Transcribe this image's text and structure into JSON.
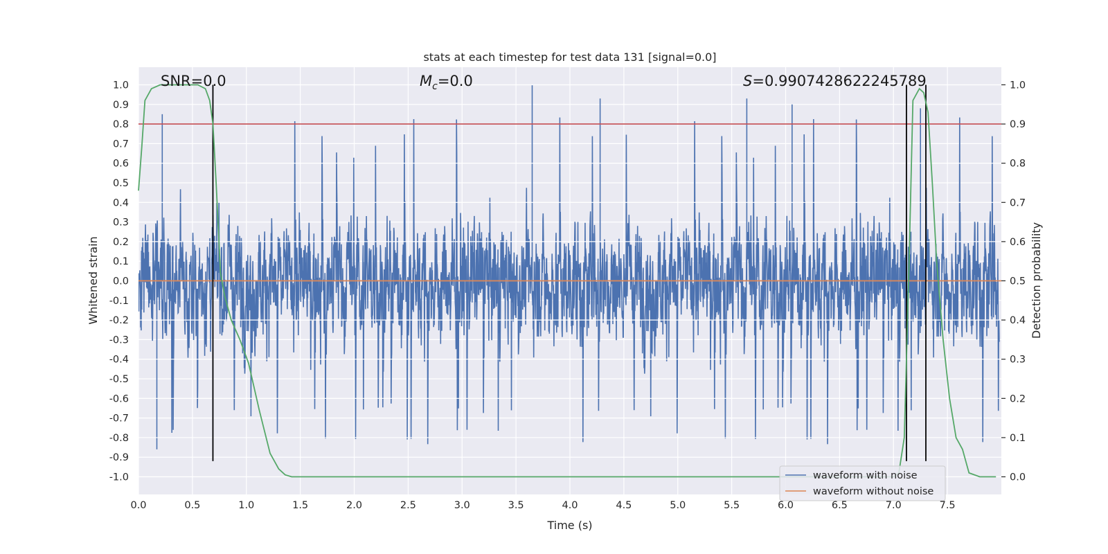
{
  "chart_data": {
    "type": "line",
    "title": "stats at each timestep for test data 131 [signal=0.0]",
    "xlabel": "Time (s)",
    "ylabel": "Whitened strain",
    "ylabel_right": "Detection probability",
    "xlim": [
      0.0,
      8.0
    ],
    "ylim": [
      -1.09,
      1.09
    ],
    "ylim_right": [
      -0.045,
      1.045
    ],
    "x_ticks": [
      0.0,
      0.5,
      1.0,
      1.5,
      2.0,
      2.5,
      3.0,
      3.5,
      4.0,
      4.5,
      5.0,
      5.5,
      6.0,
      6.5,
      7.0,
      7.5
    ],
    "x_tick_labels": [
      "0.0",
      "0.5",
      "1.0",
      "1.5",
      "2.0",
      "2.5",
      "3.0",
      "3.5",
      "4.0",
      "4.5",
      "5.0",
      "5.5",
      "6.0",
      "6.5",
      "7.0",
      "7.5"
    ],
    "y_ticks": [
      1.0,
      0.9,
      0.8,
      0.7,
      0.6,
      0.5,
      0.4,
      0.3,
      0.2,
      0.1,
      0.0,
      -0.1,
      -0.2,
      -0.3,
      -0.4,
      -0.5,
      -0.6,
      -0.7,
      -0.8,
      -0.9,
      -1.0
    ],
    "y_tick_labels": [
      "1.0",
      "0.9",
      "0.8",
      "0.7",
      "0.6",
      "0.5",
      "0.4",
      "0.3",
      "0.2",
      "0.1",
      "0.0",
      "-0.1",
      "-0.2",
      "-0.3",
      "-0.4",
      "-0.5",
      "-0.6",
      "-0.7",
      "-0.8",
      "-0.9",
      "-1.0"
    ],
    "y_ticks_right": [
      1.0,
      0.9,
      0.8,
      0.7,
      0.6,
      0.5,
      0.4,
      0.3,
      0.2,
      0.1,
      0.0
    ],
    "y_tick_labels_right": [
      "1.0",
      "0.9",
      "0.8",
      "0.7",
      "0.6",
      "0.5",
      "0.4",
      "0.3",
      "0.2",
      "0.1",
      "0.0"
    ],
    "grid": true,
    "legend_position": "bottom-right",
    "annotations": {
      "snr": "SNR=0.0",
      "mc_symbol": "M",
      "mc_sub": "c",
      "mc_value": "=0.0",
      "s_symbol": "S",
      "s_value": "=0.9907428622245789"
    },
    "series": [
      {
        "name": "waveform with noise",
        "color": "#4c72b0",
        "axis": "left",
        "kind": "noise",
        "typical_amplitude": 0.35,
        "peak_max": 1.0,
        "peak_min": -0.86
      },
      {
        "name": "waveform without noise",
        "color": "#dd8452",
        "axis": "left",
        "x": [
          0.0,
          8.0
        ],
        "y": [
          0.0,
          0.0
        ]
      },
      {
        "name": "detection probability",
        "color": "#55a868",
        "axis": "right",
        "x": [
          0.0,
          0.03,
          0.06,
          0.12,
          0.2,
          0.3,
          0.4,
          0.5,
          0.55,
          0.62,
          0.66,
          0.69,
          0.72,
          0.76,
          0.8,
          0.86,
          0.94,
          1.02,
          1.12,
          1.22,
          1.3,
          1.36,
          1.42,
          1.5,
          2.0,
          2.5,
          3.0,
          3.5,
          4.0,
          4.5,
          5.0,
          5.5,
          6.0,
          6.5,
          7.0,
          7.05,
          7.1,
          7.14,
          7.18,
          7.24,
          7.28,
          7.32,
          7.36,
          7.4,
          7.46,
          7.52,
          7.58,
          7.64,
          7.7,
          7.8,
          7.95
        ],
        "y": [
          0.73,
          0.84,
          0.96,
          0.99,
          1.0,
          1.0,
          1.0,
          1.0,
          1.0,
          0.99,
          0.96,
          0.9,
          0.75,
          0.52,
          0.46,
          0.4,
          0.35,
          0.29,
          0.17,
          0.06,
          0.02,
          0.005,
          0.0,
          0.0,
          0.0,
          0.0,
          0.0,
          0.0,
          0.0,
          0.0,
          0.0,
          0.0,
          0.0,
          0.0,
          0.0,
          0.01,
          0.1,
          0.5,
          0.96,
          0.99,
          0.98,
          0.93,
          0.75,
          0.55,
          0.35,
          0.2,
          0.1,
          0.07,
          0.01,
          0.0,
          0.0
        ]
      }
    ],
    "threshold_line": {
      "axis": "right",
      "value": 0.9,
      "color": "#c44e52"
    },
    "marker_lines": {
      "x": [
        0.69,
        7.12,
        7.3
      ],
      "y_range": [
        -0.92,
        1.0
      ],
      "color": "#000000"
    }
  }
}
